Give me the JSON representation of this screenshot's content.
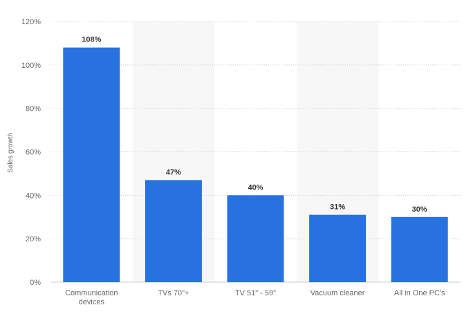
{
  "chart_data": {
    "type": "bar",
    "title": "",
    "xlabel": "",
    "ylabel": "Sales growth",
    "ylim": [
      0,
      120
    ],
    "y_ticks": [
      0,
      20,
      40,
      60,
      80,
      100,
      120
    ],
    "y_tick_labels": [
      "0%",
      "20%",
      "40%",
      "60%",
      "80%",
      "100%",
      "120%"
    ],
    "categories": [
      [
        "Communication",
        "devices"
      ],
      [
        "TVs 70\"+"
      ],
      [
        "TV 51\" - 59\""
      ],
      [
        "Vacuum cleaner"
      ],
      [
        "All in One PC's"
      ]
    ],
    "values": [
      108,
      47,
      40,
      31,
      30
    ],
    "data_labels": [
      "108%",
      "47%",
      "40%",
      "31%",
      "30%"
    ],
    "grid": true,
    "legend": "none"
  },
  "colors": {
    "bar": "#2771e0",
    "band": "#f7f7f7",
    "grid": "#cccccc",
    "axis_text": "#666666",
    "data_label": "#333333"
  }
}
